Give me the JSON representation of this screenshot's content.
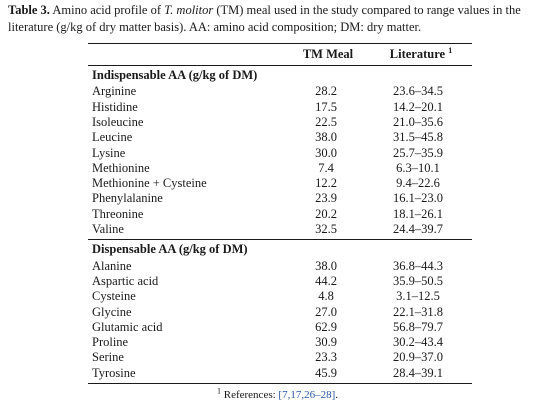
{
  "caption": {
    "label": "Table 3.",
    "text_before_italic": " Amino acid profile of ",
    "italic": "T. molitor",
    "text_after_italic": " (TM) meal used in the study compared to range values in the literature (g/kg of dry matter basis). AA: amino acid composition; DM: dry matter."
  },
  "columns": {
    "tm": "TM Meal",
    "literature": "Literature",
    "literature_sup": "1"
  },
  "sections": [
    {
      "title": "Indispensable AA (g/kg of DM)",
      "rows": [
        {
          "name": "Arginine",
          "tm": "28.2",
          "lit": "23.6–34.5"
        },
        {
          "name": "Histidine",
          "tm": "17.5",
          "lit": "14.2–20.1"
        },
        {
          "name": "Isoleucine",
          "tm": "22.5",
          "lit": "21.0–35.6"
        },
        {
          "name": "Leucine",
          "tm": "38.0",
          "lit": "31.5–45.8"
        },
        {
          "name": "Lysine",
          "tm": "30.0",
          "lit": "25.7–35.9"
        },
        {
          "name": "Methionine",
          "tm": "7.4",
          "lit": "6.3–10.1"
        },
        {
          "name": "Methionine + Cysteine",
          "tm": "12.2",
          "lit": "9.4–22.6"
        },
        {
          "name": "Phenylalanine",
          "tm": "23.9",
          "lit": "16.1–23.0"
        },
        {
          "name": "Threonine",
          "tm": "20.2",
          "lit": "18.1–26.1"
        },
        {
          "name": "Valine",
          "tm": "32.5",
          "lit": "24.4–39.7"
        }
      ]
    },
    {
      "title": "Dispensable AA (g/kg of DM)",
      "rows": [
        {
          "name": "Alanine",
          "tm": "38.0",
          "lit": "36.8–44.3"
        },
        {
          "name": "Aspartic acid",
          "tm": "44.2",
          "lit": "35.9–50.5"
        },
        {
          "name": "Cysteine",
          "tm": "4.8",
          "lit": "3.1–12.5"
        },
        {
          "name": "Glycine",
          "tm": "27.0",
          "lit": "22.1–31.8"
        },
        {
          "name": "Glutamic acid",
          "tm": "62.9",
          "lit": "56.8–79.7"
        },
        {
          "name": "Proline",
          "tm": "30.9",
          "lit": "30.2–43.4"
        },
        {
          "name": "Serine",
          "tm": "23.3",
          "lit": "20.9–37.0"
        },
        {
          "name": "Tyrosine",
          "tm": "45.9",
          "lit": "28.4–39.1"
        }
      ]
    }
  ],
  "footnote": {
    "sup": "1",
    "label": " References: ",
    "refs": "[7,17,26–28]",
    "end": "."
  }
}
